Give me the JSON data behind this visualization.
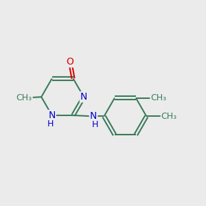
{
  "bg_color": "#ebebeb",
  "bond_color": "#3a7a5a",
  "bond_lw": 1.5,
  "atom_colors": {
    "O": "#dd0000",
    "N": "#0000cc",
    "C": "#3a7a5a",
    "H": "#0000cc"
  },
  "font_size": 10,
  "figsize": [
    3.0,
    3.0
  ],
  "dpi": 100,
  "xlim": [
    0,
    10
  ],
  "ylim": [
    0,
    10
  ]
}
